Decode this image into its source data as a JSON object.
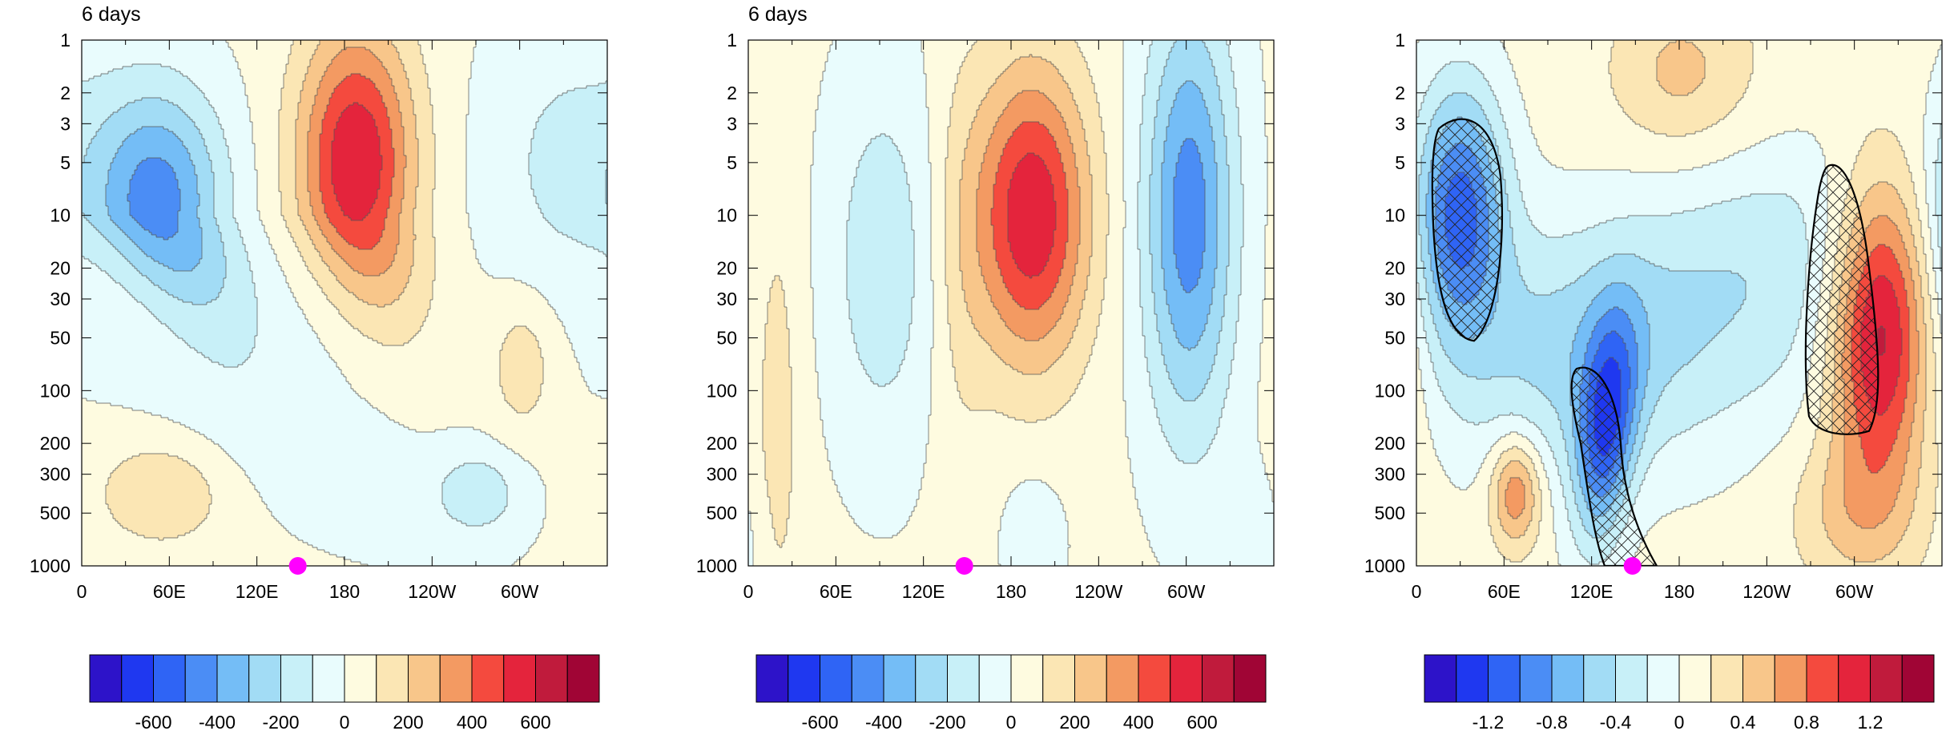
{
  "chart_data": [
    {
      "type": "heatmap",
      "title": "6 days",
      "xlabel": "",
      "ylabel": "",
      "x_ticks": [
        "0",
        "60E",
        "120E",
        "180",
        "120W",
        "60W"
      ],
      "y_ticks": [
        "1",
        "2",
        "3",
        "5",
        "10",
        "20",
        "30",
        "50",
        "100",
        "200",
        "300",
        "500",
        "1000"
      ],
      "y_scale": "log",
      "y_reversed": true,
      "ylim": [
        1000,
        1
      ],
      "xlim": [
        0,
        360
      ],
      "colorbar": {
        "levels": [
          -700,
          -600,
          -500,
          -400,
          -300,
          -200,
          -100,
          0,
          100,
          200,
          300,
          400,
          500,
          600,
          700
        ],
        "tick_labels": [
          "-600",
          "-400",
          "-200",
          "0",
          "200",
          "400",
          "600"
        ]
      },
      "features": [
        {
          "kind": "min",
          "lon": 48,
          "p": 8,
          "value": -450
        },
        {
          "kind": "max",
          "lon": 188,
          "p": 5,
          "value": 560
        },
        {
          "kind": "min",
          "lon": 325,
          "p": 12,
          "value": -120
        },
        {
          "kind": "max",
          "lon": 55,
          "p": 380,
          "value": 170
        },
        {
          "kind": "min",
          "lon": 272,
          "p": 380,
          "value": -160
        },
        {
          "kind": "max",
          "lon": 305,
          "p": 60,
          "value": 140
        }
      ],
      "marker": {
        "lon": 148,
        "p": 1000,
        "color": "#ff00ff"
      }
    },
    {
      "type": "heatmap",
      "title": "6 days",
      "xlabel": "",
      "ylabel": "",
      "x_ticks": [
        "0",
        "60E",
        "120E",
        "180",
        "120W",
        "60W"
      ],
      "y_ticks": [
        "1",
        "2",
        "3",
        "5",
        "10",
        "20",
        "30",
        "50",
        "100",
        "200",
        "300",
        "500",
        "1000"
      ],
      "y_scale": "log",
      "y_reversed": true,
      "ylim": [
        1000,
        1
      ],
      "xlim": [
        0,
        360
      ],
      "colorbar": {
        "levels": [
          -700,
          -600,
          -500,
          -400,
          -300,
          -200,
          -100,
          0,
          100,
          200,
          300,
          400,
          500,
          600,
          700
        ],
        "tick_labels": [
          "-600",
          "-400",
          "-200",
          "0",
          "200",
          "400",
          "600"
        ]
      },
      "features": [
        {
          "kind": "min",
          "lon": 92,
          "p": 18,
          "value": -180
        },
        {
          "kind": "max",
          "lon": 195,
          "p": 10,
          "value": 560
        },
        {
          "kind": "min",
          "lon": 302,
          "p": 10,
          "value": -470
        },
        {
          "kind": "max",
          "lon": 18,
          "p": 200,
          "value": 120
        },
        {
          "kind": "min",
          "lon": 195,
          "p": 600,
          "value": -120
        }
      ],
      "marker": {
        "lon": 148,
        "p": 1000,
        "color": "#ff00ff"
      }
    },
    {
      "type": "heatmap",
      "title": "",
      "xlabel": "",
      "ylabel": "",
      "x_ticks": [
        "0",
        "60E",
        "120E",
        "180",
        "120W",
        "60W"
      ],
      "y_ticks": [
        "1",
        "2",
        "3",
        "5",
        "10",
        "20",
        "30",
        "50",
        "100",
        "200",
        "300",
        "500",
        "1000"
      ],
      "y_scale": "log",
      "y_reversed": true,
      "ylim": [
        1000,
        1
      ],
      "xlim": [
        0,
        360
      ],
      "colorbar": {
        "levels": [
          -1.4,
          -1.2,
          -1.0,
          -0.8,
          -0.6,
          -0.4,
          -0.2,
          0,
          0.2,
          0.4,
          0.6,
          0.8,
          1.0,
          1.2,
          1.4
        ],
        "tick_labels": [
          "-1.2",
          "-0.8",
          "-0.4",
          "0",
          "0.4",
          "0.8",
          "1.2"
        ]
      },
      "features": [
        {
          "kind": "min",
          "lon": 30,
          "p": 8,
          "value": -1.1
        },
        {
          "kind": "min",
          "lon": 130,
          "p": 160,
          "value": -1.0
        },
        {
          "kind": "max",
          "lon": 318,
          "p": 50,
          "value": 1.3
        },
        {
          "kind": "max",
          "lon": 68,
          "p": 380,
          "value": 0.7
        }
      ],
      "significance_hatched": [
        "30E 3-50 hPa",
        "130E 70-1000 hPa",
        "318E 5-150 hPa"
      ],
      "marker": {
        "lon": 148,
        "p": 1000,
        "color": "#ff00ff"
      }
    }
  ],
  "colors": {
    "palette": [
      "#2d13c9",
      "#1f38f0",
      "#2f64f5",
      "#4b8df5",
      "#74bdf6",
      "#a2dcf5",
      "#c8f0f8",
      "#e9fcfd",
      "#fefbe0",
      "#fbe6b4",
      "#f8c68a",
      "#f39a62",
      "#f44a3e",
      "#e4243c",
      "#c01b3c",
      "#a00535"
    ],
    "marker": "#ff00ff"
  }
}
